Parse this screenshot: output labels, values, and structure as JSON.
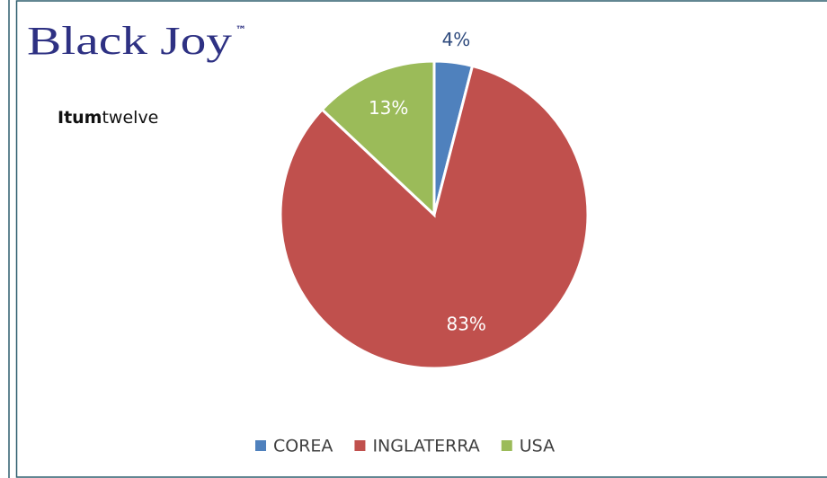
{
  "logo": {
    "name": "Black Joy",
    "mark": "™",
    "tagline_bold": "Itum",
    "tagline": "twelve"
  },
  "chart_data": {
    "type": "pie",
    "categories": [
      "COREA",
      "INGLATERRA",
      "USA"
    ],
    "values": [
      4,
      83,
      13
    ],
    "value_labels": [
      "4%",
      "83%",
      "13%"
    ],
    "colors": [
      "#4f81bd",
      "#c0504d",
      "#9bbb59"
    ],
    "legend": "bottom"
  }
}
